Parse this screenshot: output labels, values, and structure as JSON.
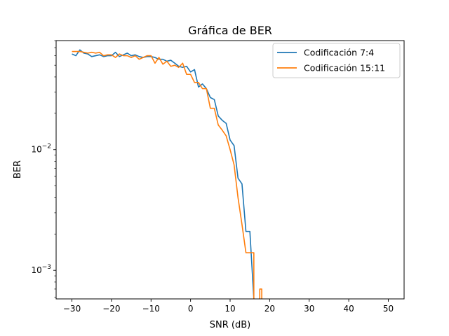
{
  "chart_data": {
    "type": "line",
    "title": "Gráfica de BER",
    "xlabel": "SNR (dB)",
    "ylabel": "BER",
    "xlim": [
      -34,
      54
    ],
    "ylim": [
      0.00058,
      0.08
    ],
    "yscale": "log",
    "grid": false,
    "legend_position": "top-right",
    "x_ticks": [
      -30,
      -20,
      -10,
      0,
      10,
      20,
      30,
      40,
      50
    ],
    "x_tick_labels": [
      "−30",
      "−20",
      "−10",
      "0",
      "10",
      "20",
      "30",
      "40",
      "50"
    ],
    "y_ticks": [
      0.01,
      0.001
    ],
    "y_tick_labels": [
      {
        "base": "10",
        "exp": "−2"
      },
      {
        "base": "10",
        "exp": "−3"
      }
    ],
    "series": [
      {
        "name": "Codificación 7:4",
        "color": "#1f77b4",
        "x": [
          -30,
          -29,
          -28,
          -27,
          -26,
          -25,
          -24,
          -23,
          -22,
          -21,
          -20,
          -19,
          -18,
          -17,
          -16,
          -15,
          -14,
          -13,
          -12,
          -11,
          -10,
          -9,
          -8,
          -7,
          -6,
          -5,
          -4,
          -3,
          -2,
          -1,
          0,
          1,
          2,
          3,
          4,
          5,
          6,
          7,
          8,
          9,
          10,
          11,
          12,
          13,
          14,
          15,
          16
        ],
        "y": [
          0.062,
          0.06,
          0.067,
          0.063,
          0.062,
          0.059,
          0.06,
          0.061,
          0.059,
          0.06,
          0.06,
          0.064,
          0.059,
          0.061,
          0.063,
          0.06,
          0.061,
          0.059,
          0.058,
          0.059,
          0.059,
          0.058,
          0.056,
          0.056,
          0.054,
          0.055,
          0.052,
          0.049,
          0.048,
          0.049,
          0.044,
          0.046,
          0.033,
          0.035,
          0.032,
          0.027,
          0.026,
          0.019,
          0.0175,
          0.0165,
          0.012,
          0.0108,
          0.0058,
          0.0052,
          0.0021,
          0.0021,
          0.00058
        ]
      },
      {
        "name": "Codificación 15:11",
        "color": "#ff7f0e",
        "x": [
          -30,
          -29,
          -28,
          -27,
          -26,
          -25,
          -24,
          -23,
          -22,
          -21,
          -20,
          -19,
          -18,
          -17,
          -16,
          -15,
          -14,
          -13,
          -12,
          -11,
          -10,
          -9,
          -8,
          -7,
          -6,
          -5,
          -4,
          -3,
          -2,
          -1,
          0,
          1,
          2,
          3,
          4,
          5,
          6,
          7,
          8,
          9,
          10,
          11,
          12,
          13,
          14,
          15,
          16,
          16,
          17,
          17.5,
          17.5,
          18,
          18
        ],
        "y": [
          0.065,
          0.065,
          0.065,
          0.064,
          0.063,
          0.064,
          0.063,
          0.064,
          0.06,
          0.061,
          0.061,
          0.058,
          0.062,
          0.06,
          0.06,
          0.058,
          0.06,
          0.056,
          0.058,
          0.06,
          0.06,
          0.052,
          0.058,
          0.051,
          0.054,
          0.049,
          0.05,
          0.048,
          0.052,
          0.042,
          0.042,
          0.036,
          0.036,
          0.032,
          0.032,
          0.022,
          0.022,
          0.016,
          0.0145,
          0.013,
          0.01,
          0.0075,
          0.004,
          0.0024,
          0.0014,
          0.0014,
          0.0014,
          0.00058,
          null,
          0.00058,
          0.0007,
          0.0007,
          0.00058
        ]
      }
    ]
  }
}
